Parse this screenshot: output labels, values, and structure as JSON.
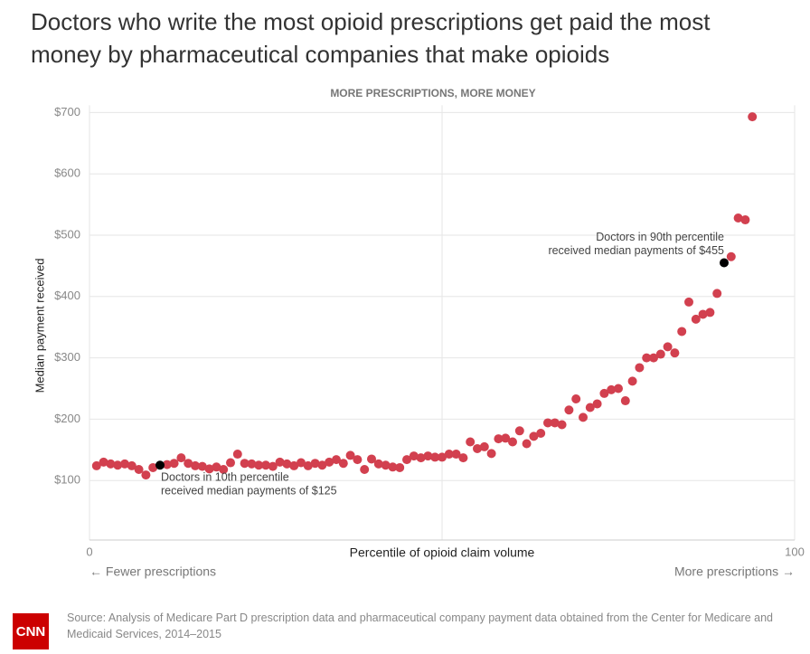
{
  "chart_data": {
    "type": "scatter",
    "title_lines": [
      "Doctors who write the most opioid prescriptions get paid the most",
      "money by pharmaceutical companies that make opioids"
    ],
    "subtitle": "MORE PRESCRIPTIONS, MORE MONEY",
    "y_label": "Median payment received",
    "x_label": "Percentile of opioid claim volume",
    "x_left_note": "← Fewer prescriptions",
    "x_right_note": "More prescriptions →",
    "xlim": [
      0,
      100
    ],
    "xticks": [
      0,
      100
    ],
    "x_gridlines": [
      50
    ],
    "ylim": [
      0,
      700
    ],
    "yticks": [
      {
        "value": 100,
        "label": "$100"
      },
      {
        "value": 200,
        "label": "$200"
      },
      {
        "value": 300,
        "label": "$300"
      },
      {
        "value": 400,
        "label": "$400"
      },
      {
        "value": 500,
        "label": "$500"
      },
      {
        "value": 600,
        "label": "$600"
      },
      {
        "value": 700,
        "label": "$700"
      }
    ],
    "grid": true,
    "color": "#d2404f",
    "x": [
      1,
      2,
      3,
      4,
      5,
      6,
      7,
      8,
      9,
      11,
      12,
      13,
      14,
      15,
      16,
      17,
      18,
      19,
      20,
      21,
      22,
      23,
      24,
      25,
      26,
      27,
      28,
      29,
      30,
      31,
      32,
      33,
      34,
      35,
      36,
      37,
      38,
      39,
      40,
      41,
      42,
      43,
      44,
      45,
      46,
      47,
      48,
      49,
      50,
      51,
      52,
      53,
      54,
      55,
      56,
      57,
      58,
      59,
      60,
      61,
      62,
      63,
      64,
      65,
      66,
      67,
      68,
      69,
      70,
      71,
      72,
      73,
      74,
      75,
      76,
      77,
      78,
      79,
      80,
      81,
      82,
      83,
      84,
      85,
      86,
      87,
      88,
      89,
      91,
      92,
      93,
      94
    ],
    "values": [
      124,
      130,
      127,
      125,
      127,
      124,
      118,
      109,
      121,
      126,
      128,
      137,
      128,
      124,
      123,
      119,
      122,
      118,
      129,
      143,
      128,
      127,
      125,
      125,
      123,
      130,
      127,
      124,
      129,
      124,
      128,
      125,
      130,
      134,
      128,
      141,
      134,
      118,
      135,
      127,
      125,
      122,
      121,
      134,
      140,
      137,
      140,
      138,
      138,
      143,
      143,
      137,
      163,
      152,
      155,
      144,
      168,
      169,
      163,
      181,
      160,
      172,
      177,
      194,
      194,
      191,
      215,
      233,
      203,
      219,
      225,
      242,
      248,
      250,
      230,
      262,
      284,
      300,
      300,
      306,
      318,
      308,
      343,
      391,
      363,
      371,
      374,
      405,
      465,
      528,
      525,
      693
    ],
    "annotations": [
      {
        "x": 10,
        "y": 125,
        "color": "#000000",
        "lines": [
          "Doctors in 10th percentile",
          "received median payments of $125"
        ]
      },
      {
        "x": 90,
        "y": 455,
        "color": "#000000",
        "lines": [
          "Doctors in 90th percentile",
          "received median payments of $455"
        ]
      }
    ],
    "source": "Source: Analysis of Medicare Part D prescription data and pharmaceutical company payment data obtained from the Center for Medicare and Medicaid Services, 2014–2015",
    "logo": "CNN"
  }
}
